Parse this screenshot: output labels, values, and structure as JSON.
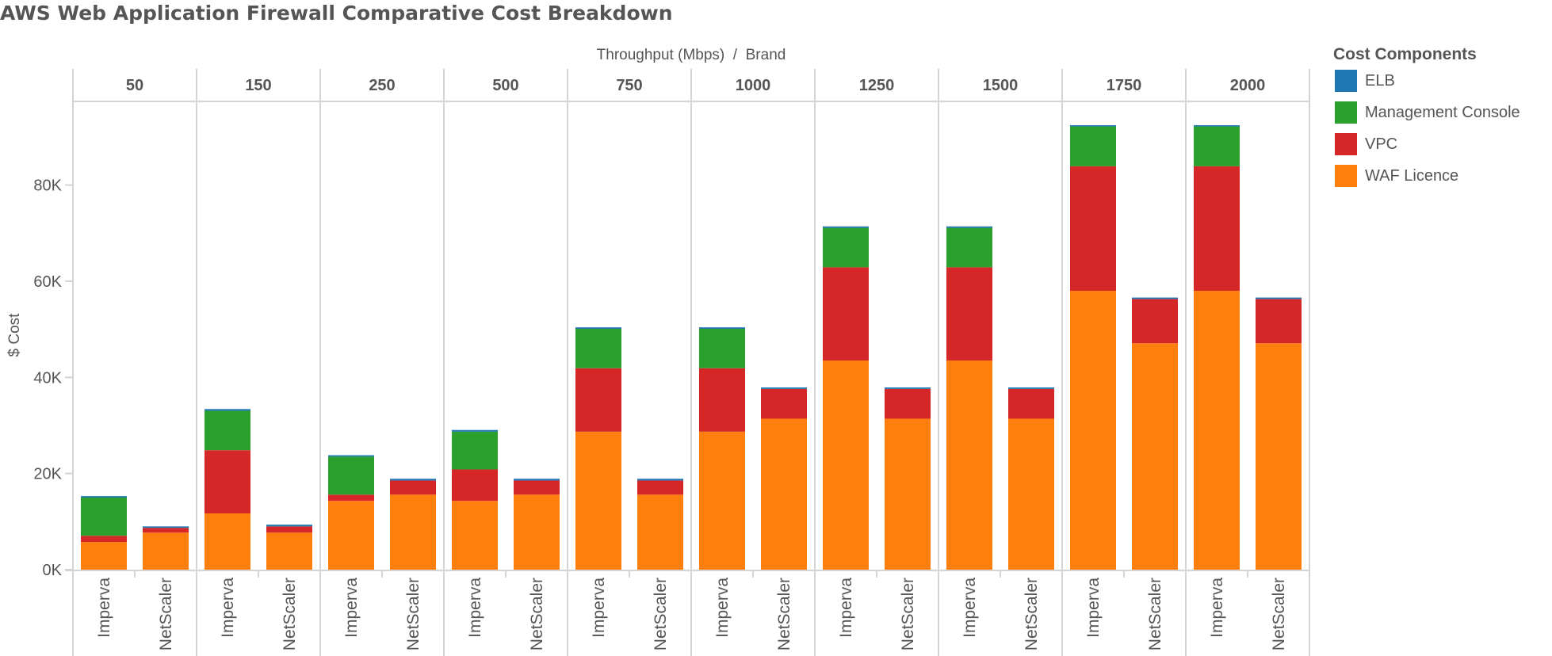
{
  "chart_data": {
    "type": "bar",
    "stacked": true,
    "title": "AWS Web Application Firewall Comparative Cost Breakdown",
    "column_header": "Throughput (Mbps)  /  Brand",
    "xlabel": "Brand",
    "ylabel": "$ Cost",
    "ylim": [
      0,
      97400
    ],
    "yticks": [
      0,
      20000,
      40000,
      60000,
      80000
    ],
    "ytick_labels": [
      "0K",
      "20K",
      "40K",
      "60K",
      "80K"
    ],
    "grid": false,
    "legend": {
      "title": "Cost Components",
      "placement": "right",
      "entries": [
        {
          "name": "ELB",
          "color": "#1f77b4"
        },
        {
          "name": "Management Console",
          "color": "#2ca02c"
        },
        {
          "name": "VPC",
          "color": "#d62728"
        },
        {
          "name": "WAF Licence",
          "color": "#ff7f0e"
        }
      ]
    },
    "stack_order": [
      "WAF Licence",
      "VPC",
      "Management Console",
      "ELB"
    ],
    "throughput_groups": [
      "50",
      "150",
      "250",
      "500",
      "750",
      "1000",
      "1250",
      "1500",
      "1750",
      "2000"
    ],
    "brands": [
      "Imperva",
      "NetScaler"
    ],
    "categories": [
      "50 Imperva",
      "50 NetScaler",
      "150 Imperva",
      "150 NetScaler",
      "250 Imperva",
      "250 NetScaler",
      "500 Imperva",
      "500 NetScaler",
      "750 Imperva",
      "750 NetScaler",
      "1000 Imperva",
      "1000 NetScaler",
      "1250 Imperva",
      "1250 NetScaler",
      "1500 Imperva",
      "1500 NetScaler",
      "1750 Imperva",
      "1750 NetScaler",
      "2000 Imperva",
      "2000 NetScaler"
    ],
    "series": [
      {
        "name": "WAF Licence",
        "color": "#ff7f0e",
        "values": [
          5750,
          7700,
          11700,
          7700,
          14300,
          15600,
          14300,
          15600,
          28700,
          15600,
          28700,
          31400,
          43500,
          31400,
          43500,
          31400,
          58000,
          47100,
          58000,
          47100
        ]
      },
      {
        "name": "VPC",
        "color": "#d62728",
        "values": [
          1300,
          1000,
          13150,
          1300,
          1300,
          2950,
          6550,
          2950,
          13200,
          2950,
          13200,
          6200,
          19400,
          6200,
          19400,
          6200,
          25900,
          9200,
          25900,
          9200
        ]
      },
      {
        "name": "Management Console",
        "color": "#2ca02c",
        "values": [
          7950,
          0,
          8200,
          0,
          7900,
          0,
          7850,
          0,
          8200,
          0,
          8200,
          0,
          8200,
          0,
          8200,
          0,
          8300,
          0,
          8300,
          0
        ]
      },
      {
        "name": "ELB",
        "color": "#1f77b4",
        "values": [
          300,
          300,
          350,
          350,
          300,
          350,
          350,
          350,
          300,
          350,
          300,
          300,
          300,
          300,
          300,
          300,
          250,
          300,
          250,
          300
        ]
      }
    ]
  }
}
